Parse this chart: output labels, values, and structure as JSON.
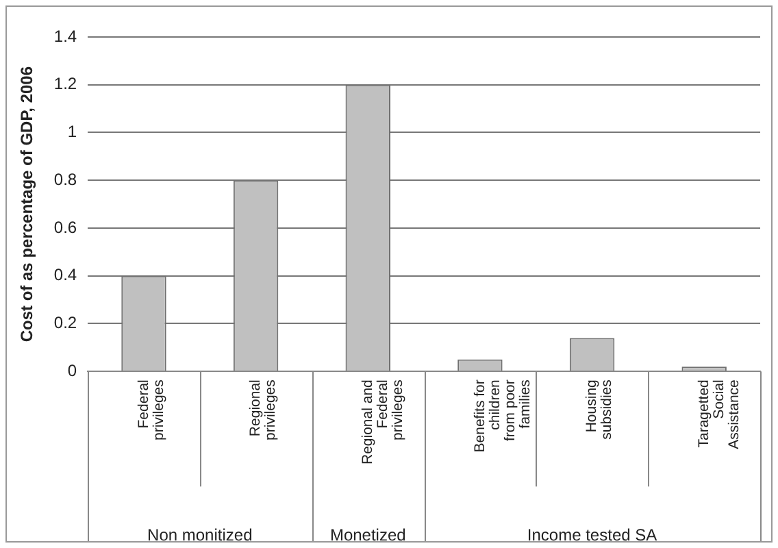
{
  "chart_data": {
    "type": "bar",
    "ylabel": "Cost of as percentage of GDP, 2006",
    "categories": [
      "Federal privileges",
      "Regional privileges",
      "Regional and Federal privileges",
      "Benefits for children from poor families",
      "Housing subsidies",
      "Taragetted Social Assistance"
    ],
    "values": [
      0.4,
      0.8,
      1.2,
      0.05,
      0.14,
      0.02
    ],
    "color": "#c0c0c0",
    "ylim": [
      0,
      1.4
    ],
    "yticks": [
      0,
      0.2,
      0.4,
      0.6,
      0.8,
      1,
      1.2,
      1.4
    ],
    "grid": "y",
    "legend": false,
    "annotations": [
      "Non monitized",
      "Monetized",
      "Income tested SA"
    ]
  }
}
